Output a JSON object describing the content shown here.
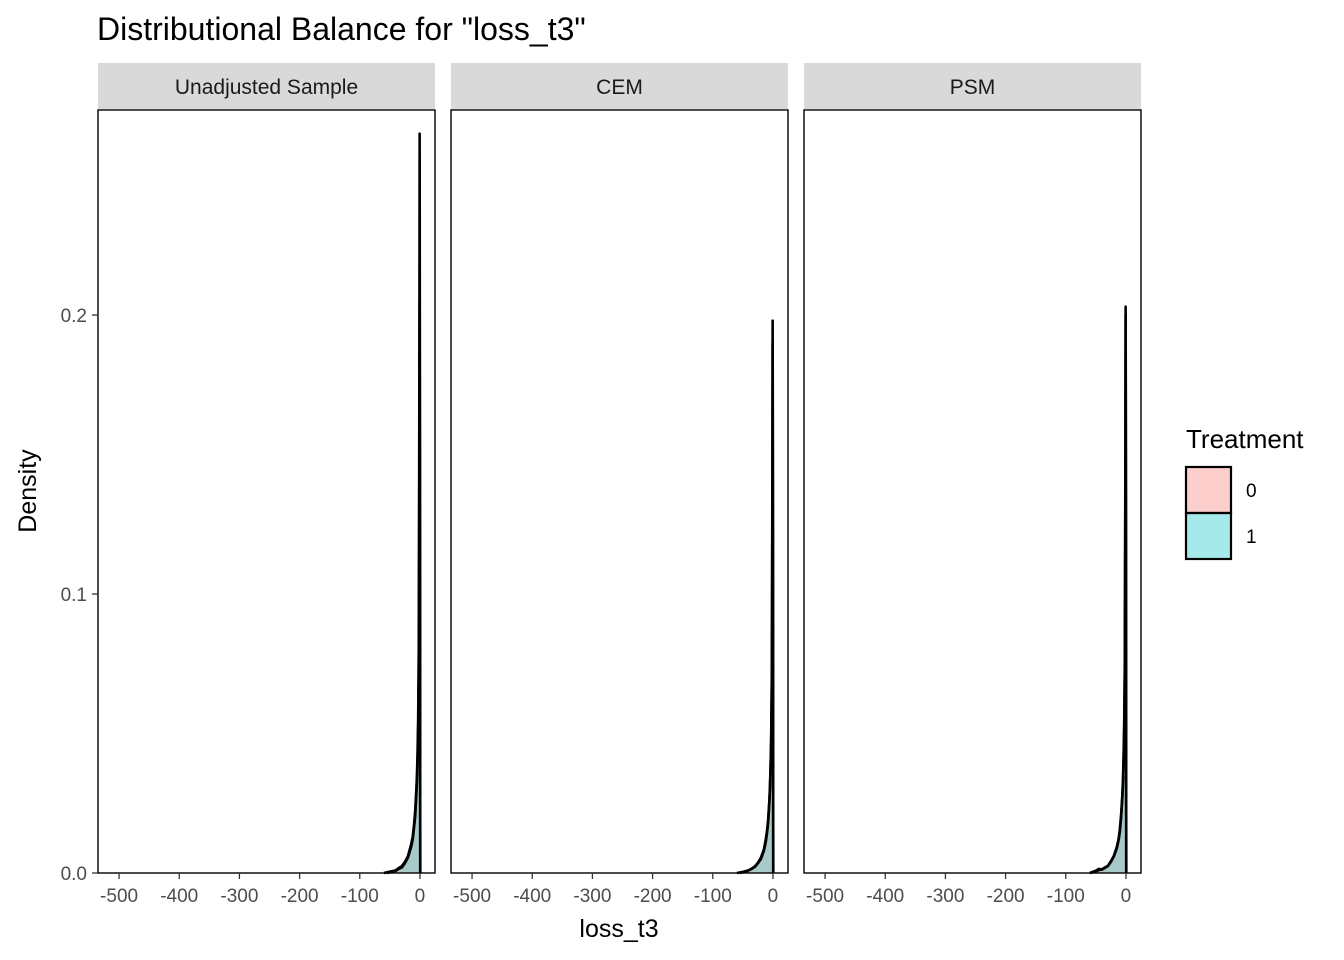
{
  "chart_data": {
    "type": "area",
    "title": "Distributional Balance for \"loss_t3\"",
    "xlabel": "loss_t3",
    "ylabel": "Density",
    "xlim": [
      -535,
      25
    ],
    "ylim": [
      0,
      0.2735
    ],
    "x_ticks": [
      -500,
      -400,
      -300,
      -200,
      -100,
      0
    ],
    "x_tick_labels": [
      "-500",
      "-400",
      "-300",
      "-200",
      "-100",
      "0"
    ],
    "y_ticks": [
      0,
      0.1,
      0.2
    ],
    "y_tick_labels": [
      "0.0",
      "0.1",
      "0.2"
    ],
    "grid": false,
    "legend": {
      "title": "Treatment",
      "position": "right",
      "entries": [
        {
          "label": "0",
          "color": "#F8766D"
        },
        {
          "label": "1",
          "color": "#00BFC4"
        }
      ]
    },
    "panels": [
      {
        "name": "Unadjusted Sample",
        "series": [
          {
            "name": "0",
            "color": "#F8766D",
            "x": [
              -55,
              -45,
              -40,
              -35,
              -30,
              -25,
              -20,
              -15,
              -12,
              -10,
              -8,
              -6,
              -5,
              -4,
              -3,
              -2,
              -1.5,
              -1,
              -0.5,
              0,
              0.5
            ],
            "y": [
              0,
              0.0005,
              0.0008,
              0.0015,
              0.002,
              0.0035,
              0.0055,
              0.009,
              0.012,
              0.016,
              0.02,
              0.028,
              0.033,
              0.04,
              0.05,
              0.07,
              0.1,
              0.15,
              0.205,
              0.12,
              0
            ]
          },
          {
            "name": "1",
            "color": "#00BFC4",
            "x": [
              -60,
              -50,
              -40,
              -35,
              -30,
              -25,
              -20,
              -15,
              -12,
              -10,
              -8,
              -6,
              -5,
              -4,
              -3,
              -2,
              -1.5,
              -1,
              -0.5,
              0,
              0.5
            ],
            "y": [
              0,
              0.0005,
              0.001,
              0.0018,
              0.0025,
              0.004,
              0.006,
              0.01,
              0.013,
              0.017,
              0.022,
              0.03,
              0.035,
              0.043,
              0.055,
              0.08,
              0.12,
              0.18,
              0.265,
              0.15,
              0
            ]
          }
        ]
      },
      {
        "name": "CEM",
        "series": [
          {
            "name": "0",
            "color": "#F8766D",
            "x": [
              -55,
              -45,
              -40,
              -35,
              -30,
              -25,
              -20,
              -15,
              -12,
              -10,
              -8,
              -6,
              -5,
              -4,
              -3,
              -2,
              -1.5,
              -1,
              -0.5,
              0,
              0.5
            ],
            "y": [
              0,
              0.0005,
              0.001,
              0.0015,
              0.0022,
              0.0035,
              0.005,
              0.008,
              0.011,
              0.014,
              0.018,
              0.025,
              0.03,
              0.037,
              0.046,
              0.065,
              0.09,
              0.13,
              0.19,
              0.11,
              0
            ]
          },
          {
            "name": "1",
            "color": "#00BFC4",
            "x": [
              -60,
              -50,
              -40,
              -35,
              -30,
              -25,
              -20,
              -15,
              -12,
              -10,
              -8,
              -6,
              -5,
              -4,
              -3,
              -2,
              -1.5,
              -1,
              -0.5,
              0,
              0.5
            ],
            "y": [
              0,
              0.0004,
              0.001,
              0.0016,
              0.0024,
              0.0037,
              0.0055,
              0.0085,
              0.012,
              0.015,
              0.019,
              0.026,
              0.031,
              0.038,
              0.048,
              0.068,
              0.095,
              0.14,
              0.198,
              0.12,
              0
            ]
          }
        ]
      },
      {
        "name": "PSM",
        "series": [
          {
            "name": "0",
            "color": "#F8766D",
            "x": [
              -60,
              -50,
              -45,
              -40,
              -35,
              -30,
              -25,
              -20,
              -15,
              -12,
              -10,
              -8,
              -6,
              -5,
              -4,
              -3,
              -2,
              -1.5,
              -1,
              -0.5,
              0,
              0.5
            ],
            "y": [
              0,
              0.0008,
              0.0015,
              0.0012,
              0.002,
              0.0025,
              0.004,
              0.006,
              0.009,
              0.012,
              0.015,
              0.02,
              0.027,
              0.032,
              0.04,
              0.05,
              0.07,
              0.1,
              0.14,
              0.2,
              0.12,
              0
            ]
          },
          {
            "name": "1",
            "color": "#00BFC4",
            "x": [
              -60,
              -50,
              -45,
              -40,
              -35,
              -30,
              -25,
              -20,
              -15,
              -12,
              -10,
              -8,
              -6,
              -5,
              -4,
              -3,
              -2,
              -1.5,
              -1,
              -0.5,
              0,
              0.5
            ],
            "y": [
              0,
              0.0006,
              0.001,
              0.0014,
              0.0018,
              0.0026,
              0.0042,
              0.0062,
              0.0095,
              0.0125,
              0.016,
              0.021,
              0.028,
              0.033,
              0.041,
              0.052,
              0.072,
              0.1,
              0.145,
              0.203,
              0.125,
              0
            ]
          }
        ]
      }
    ]
  }
}
